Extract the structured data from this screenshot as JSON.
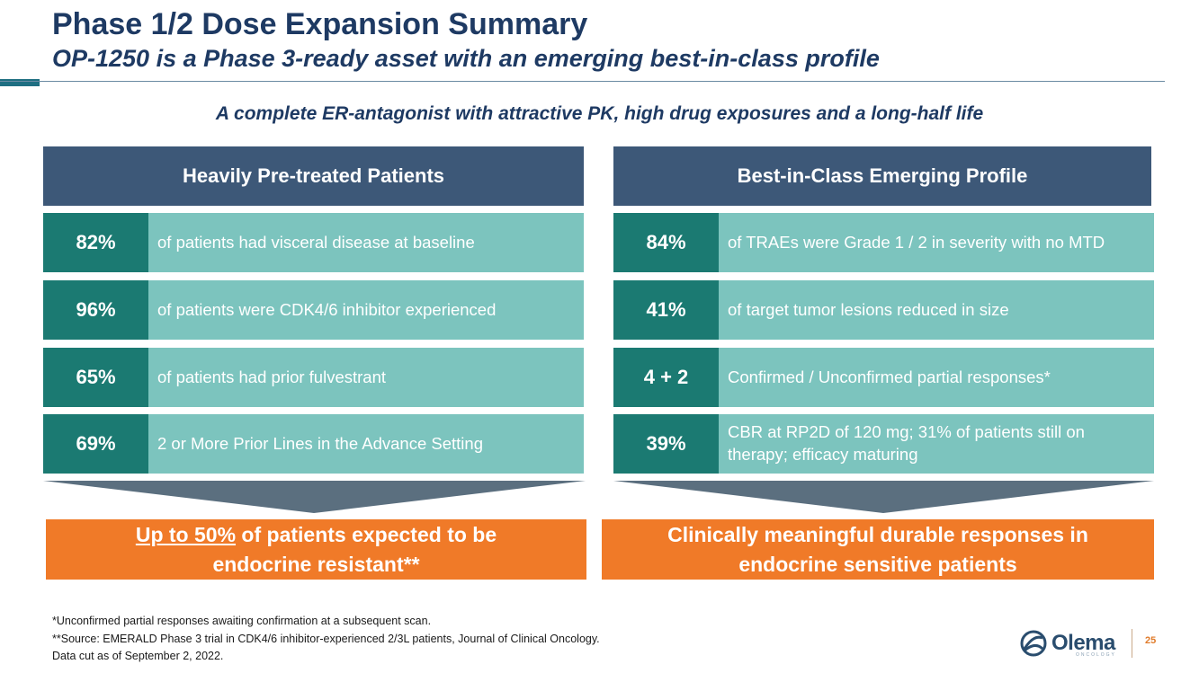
{
  "header": {
    "title": "Phase 1/2 Dose Expansion Summary",
    "subtitle": "OP-1250 is a Phase 3-ready asset with an emerging best-in-class profile"
  },
  "tagline": "A complete ER-antagonist with attractive PK, high drug exposures and a long-half life",
  "left_panel": {
    "header": "Heavily Pre-treated Patients",
    "rows": [
      {
        "value": "82%",
        "text": "of patients had visceral disease at baseline"
      },
      {
        "value": "96%",
        "text": "of patients were CDK4/6 inhibitor experienced"
      },
      {
        "value": "65%",
        "text": "of patients had prior fulvestrant"
      },
      {
        "value": "69%",
        "text": "2 or More Prior Lines in the Advance Setting"
      }
    ],
    "outcome": {
      "underlined": "Up to 50%",
      "line1_rest": " of patients expected to be",
      "line2": "endocrine resistant**"
    }
  },
  "right_panel": {
    "header": "Best-in-Class Emerging Profile",
    "rows": [
      {
        "value": "84%",
        "text": "of TRAEs were Grade 1 / 2 in severity with no MTD"
      },
      {
        "value": "41%",
        "text": "of target tumor lesions reduced in size"
      },
      {
        "value": "4 + 2",
        "text": "Confirmed / Unconfirmed partial responses*"
      },
      {
        "value": "39%",
        "text": "CBR at RP2D of 120 mg;  31% of patients still on therapy; efficacy maturing"
      }
    ],
    "outcome": {
      "line1": "Clinically meaningful durable responses in",
      "line2": "endocrine sensitive patients"
    }
  },
  "footnotes": [
    "*Unconfirmed partial responses awaiting confirmation at a subsequent scan.",
    "**Source: EMERALD Phase 3 trial in CDK4/6 inhibitor-experienced 2/3L patients, Journal of Clinical Oncology.",
    "Data cut as of September 2, 2022."
  ],
  "logo": {
    "name": "Olema",
    "sub": "ONCOLOGY",
    "icon": "olema-mark-icon"
  },
  "page_number": "25",
  "colors": {
    "navy": "#1e3a63",
    "header_bg": "#3d5878",
    "teal_dark": "#1b7a72",
    "teal_light": "#7cc4be",
    "orange": "#f07a28"
  }
}
